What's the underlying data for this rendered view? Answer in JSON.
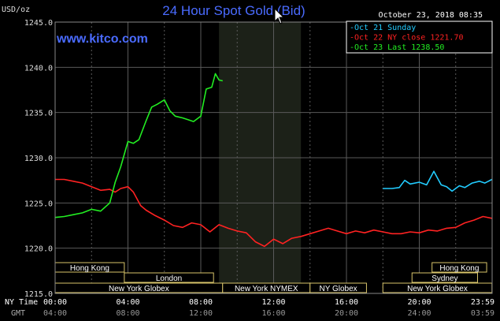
{
  "chart_data": {
    "type": "line",
    "title": "24 Hour Spot Gold (Bid)",
    "website": "www.kitco.com",
    "timestamp": "October 23, 2018 08:35",
    "ylabel": "USD/oz",
    "ylim": [
      1215,
      1245
    ],
    "y_ticks": [
      "1245.0",
      "1240.0",
      "1235.0",
      "1230.0",
      "1225.0",
      "1220.0",
      "1215.0"
    ],
    "x_ticks": [
      "00:00",
      "04:00",
      "08:00",
      "12:00",
      "16:00",
      "20:00",
      "23:59"
    ],
    "gmt_ticks": [
      "04:00",
      "08:00",
      "12:00",
      "16:00",
      "20:00",
      "24:00",
      "03:59"
    ],
    "x_row_label": "NY Time",
    "gmt_row_label": "GMT",
    "grid": true,
    "highlight": {
      "from": 9,
      "to": 13.5
    },
    "legend": {
      "placement": "top-right",
      "entries": [
        {
          "label": "Oct 21 Sunday",
          "color": "#22ccff"
        },
        {
          "label": "Oct 22 NY close 1221.70",
          "color": "#ff2222"
        },
        {
          "label": "Oct 23 Last 1238.50",
          "color": "#22ee22"
        }
      ]
    },
    "series": [
      {
        "name": "Oct 21 Sunday",
        "color": "#22ccff",
        "x": [
          18.0,
          18.5,
          18.9,
          19.2,
          19.5,
          20.0,
          20.4,
          20.8,
          21.2,
          21.5,
          21.8,
          22.2,
          22.5,
          22.9,
          23.3,
          23.6,
          23.99
        ],
        "y": [
          1226.6,
          1226.6,
          1226.7,
          1227.5,
          1227.1,
          1227.3,
          1227.0,
          1228.5,
          1227.0,
          1226.8,
          1226.3,
          1226.9,
          1226.7,
          1227.2,
          1227.4,
          1227.2,
          1227.6
        ]
      },
      {
        "name": "Oct 22 NY close 1221.70",
        "color": "#ff2222",
        "x": [
          0,
          0.5,
          1,
          1.5,
          2,
          2.5,
          3,
          3.3,
          3.6,
          4,
          4.3,
          4.7,
          5,
          5.5,
          6,
          6.5,
          7,
          7.5,
          8,
          8.5,
          9,
          9.5,
          10,
          10.5,
          11,
          11.5,
          12,
          12.5,
          13,
          13.5,
          14,
          14.5,
          15,
          15.5,
          16,
          16.5,
          17,
          17.5,
          18,
          18.5,
          19,
          19.5,
          20,
          20.5,
          21,
          21.5,
          22,
          22.5,
          23,
          23.5,
          23.99
        ],
        "y": [
          1227.6,
          1227.6,
          1227.4,
          1227.2,
          1226.8,
          1226.4,
          1226.5,
          1226.2,
          1226.6,
          1226.8,
          1226.2,
          1224.7,
          1224.2,
          1223.6,
          1223.1,
          1222.5,
          1222.3,
          1222.8,
          1222.6,
          1221.8,
          1222.6,
          1222.2,
          1221.9,
          1221.7,
          1220.7,
          1220.2,
          1221.0,
          1220.5,
          1221.1,
          1221.3,
          1221.6,
          1221.9,
          1222.2,
          1221.9,
          1221.6,
          1221.9,
          1221.7,
          1222.0,
          1221.8,
          1221.6,
          1221.6,
          1221.8,
          1221.7,
          1222.0,
          1221.9,
          1222.2,
          1222.3,
          1222.8,
          1223.1,
          1223.5,
          1223.3
        ]
      },
      {
        "name": "Oct 23 Last 1238.50",
        "color": "#22ee22",
        "x": [
          0,
          0.5,
          1,
          1.5,
          2,
          2.5,
          3,
          3.3,
          3.6,
          4,
          4.3,
          4.6,
          5,
          5.3,
          5.6,
          6,
          6.3,
          6.6,
          7,
          7.3,
          7.6,
          8,
          8.3,
          8.6,
          8.8,
          9,
          9.2
        ],
        "y": [
          1223.4,
          1223.5,
          1223.7,
          1223.9,
          1224.3,
          1224.1,
          1225.0,
          1227.3,
          1229.0,
          1231.8,
          1231.6,
          1232.0,
          1234.1,
          1235.6,
          1235.9,
          1236.4,
          1235.2,
          1234.6,
          1234.4,
          1234.2,
          1234.0,
          1234.6,
          1237.6,
          1237.8,
          1239.3,
          1238.6,
          1238.5
        ]
      }
    ],
    "sessions": [
      {
        "label": "Hong Kong",
        "from": 0,
        "to": 3.8,
        "row": 1
      },
      {
        "label": "London",
        "from": 3.8,
        "to": 8.7,
        "row": 2
      },
      {
        "label": "New York Globex",
        "from": 0,
        "to": 9.2,
        "row": 3
      },
      {
        "label": "New York NYMEX",
        "from": 9.2,
        "to": 14.0,
        "row": 3
      },
      {
        "label": "NY Globex",
        "from": 14.0,
        "to": 17.1,
        "row": 3
      },
      {
        "label": "Hong Kong",
        "from": 20.7,
        "to": 23.7,
        "row": 1
      },
      {
        "label": "Sydney",
        "from": 19.6,
        "to": 23.2,
        "row": 2
      },
      {
        "label": "New York Globex",
        "from": 18.0,
        "to": 23.99,
        "row": 3
      }
    ]
  }
}
